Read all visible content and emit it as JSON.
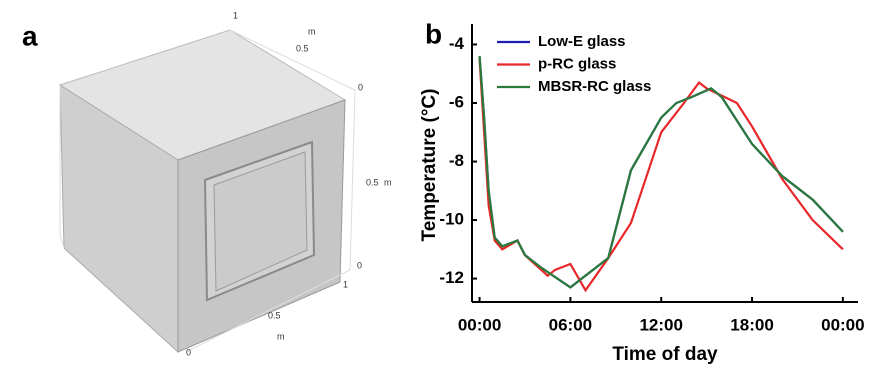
{
  "panel_a": {
    "label": "a",
    "axis_labels": [
      "1",
      "m",
      "0.5",
      "0",
      "0.5",
      "m",
      "0",
      "1",
      "0.5",
      "m",
      "0"
    ]
  },
  "chart_data": {
    "type": "line",
    "panel_label": "b",
    "x_label": "Time of day",
    "y_label": "Temperature (°C)",
    "xlim": [
      -0.5,
      25
    ],
    "ylim": [
      -12.8,
      -3.3
    ],
    "xticks": [
      {
        "value": 0,
        "label": "00:00"
      },
      {
        "value": 6,
        "label": "06:00"
      },
      {
        "value": 12,
        "label": "12:00"
      },
      {
        "value": 18,
        "label": "18:00"
      },
      {
        "value": 24,
        "label": "00:00"
      }
    ],
    "yticks": [
      -4,
      -6,
      -8,
      -10,
      -12
    ],
    "legend": "upper left",
    "series": [
      {
        "name": "Low-E glass",
        "color": "#1f1fb4",
        "x": [
          0,
          0.3,
          0.6,
          1,
          1.5,
          2.5,
          3,
          4,
          6,
          7,
          8.5,
          10,
          12,
          13,
          14,
          15.3,
          16,
          18,
          20,
          22,
          24
        ],
        "values": [
          -4.4,
          -6.5,
          -9,
          -10.6,
          -10.9,
          -10.7,
          -11.2,
          -11.6,
          -12.3,
          -11.9,
          -11.3,
          -8.3,
          -6.5,
          -6.0,
          -5.8,
          -5.5,
          -5.8,
          -7.4,
          -8.5,
          -9.3,
          -10.4
        ]
      },
      {
        "name": "p-RC glass",
        "color": "#e8272a",
        "x": [
          0,
          0.3,
          0.6,
          1,
          1.5,
          2.5,
          3,
          4.5,
          5,
          6,
          7,
          8.5,
          10,
          12,
          13.5,
          14.5,
          15,
          17,
          18,
          20,
          22,
          24
        ],
        "values": [
          -4.5,
          -7,
          -9.5,
          -10.7,
          -11.0,
          -10.7,
          -11.2,
          -11.9,
          -11.7,
          -11.5,
          -12.4,
          -11.3,
          -10.1,
          -7.0,
          -6.0,
          -5.3,
          -5.5,
          -6.0,
          -6.8,
          -8.6,
          -10.0,
          -11.0
        ]
      },
      {
        "name": "MBSR-RC glass",
        "color": "#2a7a3a",
        "x": [
          0,
          0.3,
          0.6,
          1,
          1.5,
          2.5,
          3,
          4,
          6,
          7,
          8.5,
          10,
          12,
          13,
          14,
          15.3,
          16,
          18,
          20,
          22,
          24
        ],
        "values": [
          -4.4,
          -6.5,
          -9,
          -10.6,
          -10.9,
          -10.7,
          -11.2,
          -11.6,
          -12.3,
          -11.9,
          -11.3,
          -8.3,
          -6.5,
          -6.0,
          -5.8,
          -5.5,
          -5.8,
          -7.4,
          -8.5,
          -9.3,
          -10.4
        ]
      }
    ]
  }
}
